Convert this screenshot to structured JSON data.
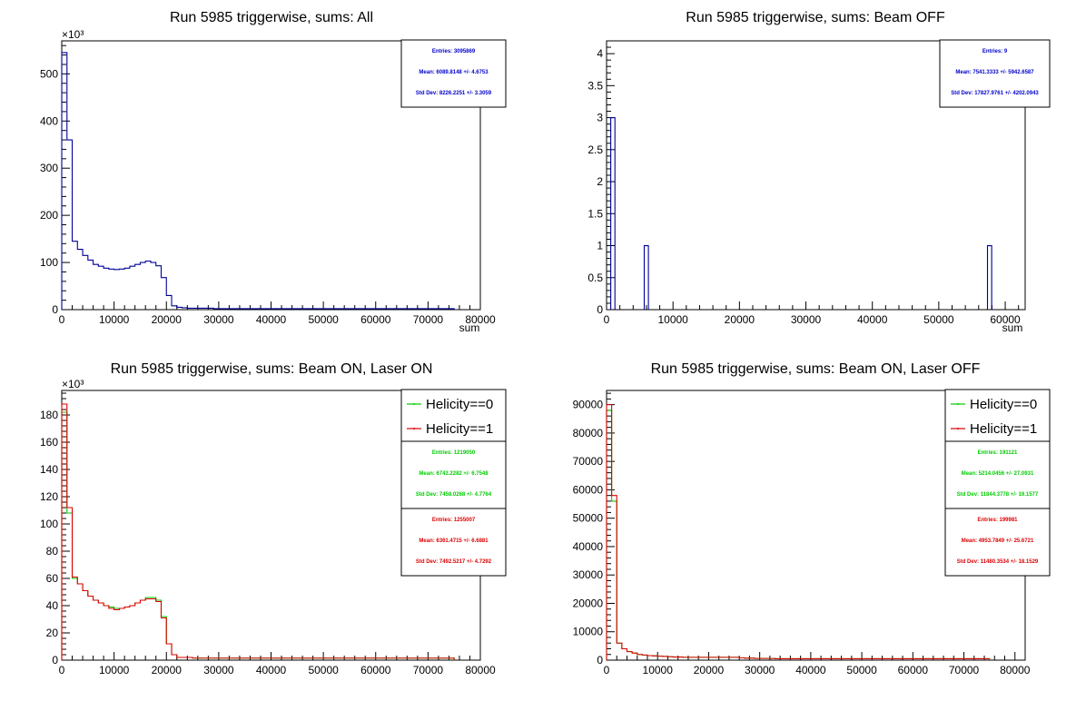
{
  "chart_data": [
    {
      "type": "histogram",
      "title": "Run 5985 triggerwise, sums: All",
      "xlabel": "sum",
      "ylabel": "",
      "xlim": [
        0,
        80000
      ],
      "ylim": [
        0,
        570
      ],
      "y_multiplier_label": "×10³",
      "xticks": [
        0,
        10000,
        20000,
        30000,
        40000,
        50000,
        60000,
        70000,
        80000
      ],
      "yticks": [
        0,
        100,
        200,
        300,
        400,
        500
      ],
      "bin_width": 1000,
      "series": [
        {
          "color": "#000099",
          "values": [
            545,
            360,
            145,
            128,
            115,
            105,
            96,
            92,
            88,
            86,
            85,
            86,
            88,
            92,
            96,
            100,
            103,
            100,
            93,
            68,
            30,
            8,
            5,
            4,
            3,
            3,
            3,
            3,
            3,
            2,
            2,
            2,
            2,
            2,
            2,
            2,
            2,
            2,
            2,
            2,
            2,
            2,
            2,
            2,
            2,
            2,
            2,
            2,
            2,
            2,
            2,
            2,
            2,
            2,
            2,
            2,
            2,
            2,
            2,
            2,
            2,
            2,
            2,
            2,
            2,
            2,
            2,
            2,
            2,
            2,
            2,
            2,
            2,
            2,
            2
          ]
        }
      ],
      "stats": [
        {
          "color": "#0000cc",
          "lines": [
            "Entries: 3095869",
            "Mean: 6089.8148 +/- 4.6753",
            "Std Dev: 8226.2251 +/- 3.3059"
          ]
        }
      ],
      "legend": []
    },
    {
      "type": "histogram",
      "title": "Run 5985 triggerwise, sums: Beam OFF",
      "xlabel": "sum",
      "ylabel": "",
      "xlim": [
        0,
        63000
      ],
      "ylim": [
        0,
        4.2
      ],
      "y_multiplier_label": "",
      "xticks": [
        0,
        10000,
        20000,
        30000,
        40000,
        50000,
        60000
      ],
      "yticks": [
        0,
        0.5,
        1,
        1.5,
        2,
        2.5,
        3,
        3.5,
        4
      ],
      "bin_width": 630,
      "series": [
        {
          "color": "#000099",
          "sparse": [
            [
              630,
              3
            ],
            [
              5670,
              1
            ],
            [
              57330,
              1
            ]
          ]
        }
      ],
      "stats": [
        {
          "color": "#0000cc",
          "lines": [
            "Entries: 9",
            "Mean: 7541.3333 +/- 5942.6587",
            "Std Dev: 17827.9761 +/- 4202.0943"
          ]
        }
      ],
      "legend": []
    },
    {
      "type": "histogram",
      "title": "Run 5985 triggerwise, sums: Beam ON, Laser ON",
      "xlabel": "",
      "ylabel": "",
      "xlim": [
        0,
        80000
      ],
      "ylim": [
        0,
        198
      ],
      "y_multiplier_label": "×10³",
      "xticks": [
        0,
        10000,
        20000,
        30000,
        40000,
        50000,
        60000,
        70000,
        80000
      ],
      "yticks": [
        0,
        20,
        40,
        60,
        80,
        100,
        120,
        140,
        160,
        180
      ],
      "bin_width": 1000,
      "series": [
        {
          "name": "Helicity==0",
          "color": "#00cc00",
          "values": [
            182,
            108,
            60,
            56,
            51,
            47,
            44,
            42,
            40,
            39,
            38,
            38,
            39,
            40,
            42,
            44,
            46,
            46,
            44,
            32,
            12,
            4,
            2,
            2,
            2,
            1.5,
            1.5,
            1.5,
            1.5,
            1.5,
            1.5,
            1.5,
            1.5,
            1.5,
            1.5,
            1.5,
            1.5,
            1.5,
            1.5,
            1.5,
            1.5,
            1.5,
            1.5,
            1.5,
            1.5,
            1.5,
            1.5,
            1.5,
            1.5,
            1.5,
            1.5,
            1.5,
            1.5,
            1.5,
            1.5,
            1.5,
            1.5,
            1.5,
            1.5,
            1.5,
            1.5,
            1.5,
            1.5,
            1.5,
            1.5,
            1.5,
            1.5,
            1.5,
            1.5,
            1.5,
            1.5,
            1.5,
            1.5,
            1.5,
            1.5
          ]
        },
        {
          "name": "Helicity==1",
          "color": "#dd0000",
          "values": [
            188,
            112,
            61,
            56,
            51,
            47,
            44,
            42,
            40,
            38,
            37,
            38,
            39,
            40,
            42,
            44,
            45,
            45,
            43,
            31,
            12,
            4,
            2,
            2,
            2,
            1.5,
            1.5,
            1.5,
            1.5,
            1.5,
            1.5,
            1.5,
            1.5,
            1.5,
            1.5,
            1.5,
            1.5,
            1.5,
            1.5,
            1.5,
            1.5,
            1.5,
            1.5,
            1.5,
            1.5,
            1.5,
            1.5,
            1.5,
            1.5,
            1.5,
            1.5,
            1.5,
            1.5,
            1.5,
            1.5,
            1.5,
            1.5,
            1.5,
            1.5,
            1.5,
            1.5,
            1.5,
            1.5,
            1.5,
            1.5,
            1.5,
            1.5,
            1.5,
            1.5,
            1.5,
            1.5,
            1.5,
            1.5,
            1.5,
            1.5
          ]
        }
      ],
      "stats": [
        {
          "color": "#00cc00",
          "lines": [
            "Entries: 1219050",
            "Mean: 6743.2282 +/- 6.7548",
            "Std Dev: 7458.0268 +/- 4.7764"
          ]
        },
        {
          "color": "#dd0000",
          "lines": [
            "Entries: 1255007",
            "Mean: 6361.4715 +/- 6.6881",
            "Std Dev: 7492.5217 +/- 4.7292"
          ]
        }
      ],
      "legend": [
        "Helicity==0",
        "Helicity==1"
      ]
    },
    {
      "type": "histogram",
      "title": "Run 5985 triggerwise, sums: Beam ON, Laser OFF",
      "xlabel": "",
      "ylabel": "",
      "xlim": [
        0,
        82000
      ],
      "ylim": [
        0,
        95000
      ],
      "y_multiplier_label": "",
      "xticks": [
        0,
        10000,
        20000,
        30000,
        40000,
        50000,
        60000,
        70000,
        80000
      ],
      "yticks": [
        0,
        10000,
        20000,
        30000,
        40000,
        50000,
        60000,
        70000,
        80000,
        90000
      ],
      "bin_width": 1000,
      "series": [
        {
          "name": "Helicity==0",
          "color": "#00cc00",
          "values": [
            88000,
            56000,
            6000,
            4000,
            3000,
            2500,
            2000,
            1800,
            1600,
            1500,
            1400,
            1300,
            1200,
            1100,
            1100,
            1000,
            1000,
            1000,
            1000,
            1000,
            1000,
            1000,
            1000,
            1000,
            1000,
            1000,
            800,
            700,
            700,
            600,
            600,
            600,
            600,
            500,
            500,
            500,
            500,
            500,
            500,
            500,
            500,
            500,
            500,
            500,
            500,
            500,
            500,
            500,
            500,
            500,
            500,
            500,
            500,
            500,
            500,
            500,
            500,
            500,
            500,
            500,
            500,
            500,
            500,
            500,
            500,
            500,
            500,
            500,
            500,
            500,
            500,
            500,
            500,
            500,
            500
          ]
        },
        {
          "name": "Helicity==1",
          "color": "#dd0000",
          "values": [
            90000,
            58000,
            6000,
            4000,
            3000,
            2500,
            2000,
            1800,
            1600,
            1500,
            1400,
            1300,
            1200,
            1100,
            1100,
            1000,
            1000,
            1000,
            1000,
            1000,
            1000,
            1000,
            1000,
            1000,
            1000,
            1000,
            800,
            700,
            700,
            600,
            600,
            600,
            600,
            500,
            500,
            500,
            500,
            500,
            500,
            500,
            500,
            500,
            500,
            500,
            500,
            500,
            500,
            500,
            500,
            500,
            500,
            500,
            500,
            500,
            500,
            500,
            500,
            500,
            500,
            500,
            500,
            500,
            500,
            500,
            500,
            500,
            500,
            500,
            500,
            500,
            500,
            500,
            500,
            500,
            500
          ]
        }
      ],
      "stats": [
        {
          "color": "#00cc00",
          "lines": [
            "Entries: 191121",
            "Mean: 5214.0456 +/- 27.0931",
            "Std Dev: 11844.3778 +/- 19.1577"
          ]
        },
        {
          "color": "#dd0000",
          "lines": [
            "Entries: 199981",
            "Mean: 4953.7849 +/- 25.6721",
            "Std Dev: 11480.3534 +/- 18.1529"
          ]
        }
      ],
      "legend": [
        "Helicity==0",
        "Helicity==1"
      ]
    }
  ]
}
